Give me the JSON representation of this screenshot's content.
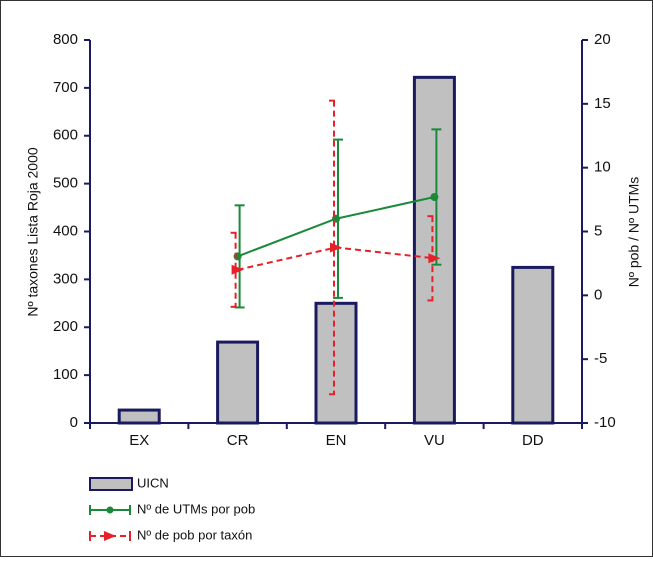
{
  "chart_data": {
    "type": "bar",
    "categories": [
      "EX",
      "CR",
      "EN",
      "VU",
      "DD"
    ],
    "ylabel": "Nº taxones Lista Roja 2000",
    "y2label": "Nº pob / Nº UTMs",
    "ylim": [
      0,
      800
    ],
    "yticks": [
      0,
      100,
      200,
      300,
      400,
      500,
      600,
      700,
      800
    ],
    "y2lim": [
      -10,
      20
    ],
    "y2ticks": [
      -10,
      -5,
      0,
      5,
      10,
      15,
      20
    ],
    "series": [
      {
        "name": "UICN",
        "type": "bar",
        "axis": "y",
        "color": "#c0c0c0",
        "values": [
          27,
          169,
          250,
          722,
          325
        ]
      },
      {
        "name": "Nº de UTMs por pob",
        "type": "line",
        "axis": "y2",
        "color": "#1a8a3a",
        "marker": "circle",
        "line_style": "solid",
        "values": [
          null,
          3.05,
          6.0,
          7.7,
          null
        ],
        "errors": [
          null,
          4.0,
          6.2,
          5.3,
          null
        ]
      },
      {
        "name": "Nº de pob por taxón",
        "type": "line",
        "axis": "y2",
        "color": "#e8202a",
        "marker": "triangle",
        "line_style": "dashed",
        "values": [
          null,
          2.0,
          3.75,
          2.9,
          null
        ],
        "errors": [
          null,
          2.9,
          11.5,
          3.3,
          null
        ]
      }
    ]
  }
}
